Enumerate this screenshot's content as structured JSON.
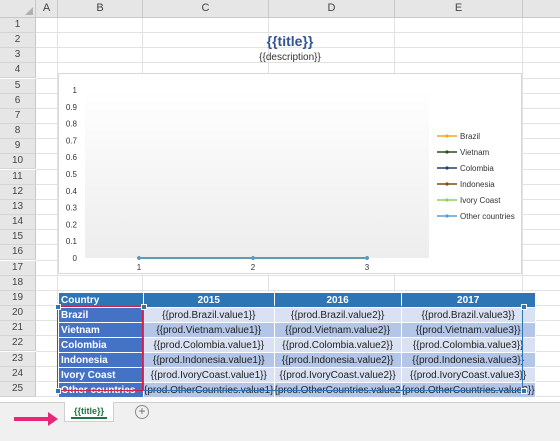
{
  "columns": [
    "A",
    "B",
    "C",
    "D",
    "E"
  ],
  "rows": [
    "1",
    "2",
    "3",
    "4",
    "5",
    "6",
    "7",
    "8",
    "9",
    "10",
    "11",
    "12",
    "13",
    "14",
    "15",
    "16",
    "17",
    "18",
    "19",
    "20",
    "21",
    "22",
    "23",
    "24",
    "25"
  ],
  "cells": {
    "title": "{{title}}",
    "description": "{{description}}"
  },
  "chart_data": {
    "type": "line",
    "x": [
      1,
      2,
      3
    ],
    "xticks": [
      "1",
      "2",
      "3"
    ],
    "yticks": [
      "0",
      "0.1",
      "0.2",
      "0.3",
      "0.4",
      "0.5",
      "0.6",
      "0.7",
      "0.8",
      "0.9",
      "1"
    ],
    "ylim": [
      0,
      1
    ],
    "series": [
      {
        "name": "Brazil",
        "color": "#f5a623",
        "values": [
          0,
          0,
          0
        ]
      },
      {
        "name": "Vietnam",
        "color": "#2d4f1e",
        "values": [
          0,
          0,
          0
        ]
      },
      {
        "name": "Colombia",
        "color": "#1f3f6b",
        "values": [
          0,
          0,
          0
        ]
      },
      {
        "name": "Indonesia",
        "color": "#7f4d12",
        "values": [
          0,
          0,
          0
        ]
      },
      {
        "name": "Ivory Coast",
        "color": "#8fcf5a",
        "values": [
          0,
          0,
          0
        ]
      },
      {
        "name": "Other countries",
        "color": "#5b9bd5",
        "values": [
          0,
          0,
          0
        ]
      }
    ],
    "legend": "right",
    "grid": false
  },
  "table": {
    "header": [
      "Country",
      "2015",
      "2016",
      "2017"
    ],
    "rows": [
      [
        "Brazil",
        "{{prod.Brazil.value1}}",
        "{{prod.Brazil.value2}}",
        "{{prod.Brazil.value3}}"
      ],
      [
        "Vietnam",
        "{{prod.Vietnam.value1}}",
        "{{prod.Vietnam.value2}}",
        "{{prod.Vietnam.value3}}"
      ],
      [
        "Colombia",
        "{{prod.Colombia.value1}}",
        "{{prod.Colombia.value2}}",
        "{{prod.Colombia.value3}}"
      ],
      [
        "Indonesia",
        "{{prod.Indonesia.value1}}",
        "{{prod.Indonesia.value2}}",
        "{{prod.Indonesia.value3}}"
      ],
      [
        "Ivory Coast",
        "{{prod.IvoryCoast.value1}}",
        "{{prod.IvoryCoast.value2}}",
        "{{prod.IvoryCoast.value3}}"
      ],
      [
        "Other countries",
        "{prod.OtherCountries.value1}",
        "{prod.OtherCountries.value2",
        "{prod.OtherCountries.value3}}"
      ]
    ]
  },
  "sheet_tab": {
    "label": "{{title}}"
  },
  "add_sheet_label": "+",
  "colors": {
    "accent": "#217346",
    "arrow": "#e8267a",
    "header_fill": "#2e75b6",
    "country_fill": "#4472c4"
  }
}
